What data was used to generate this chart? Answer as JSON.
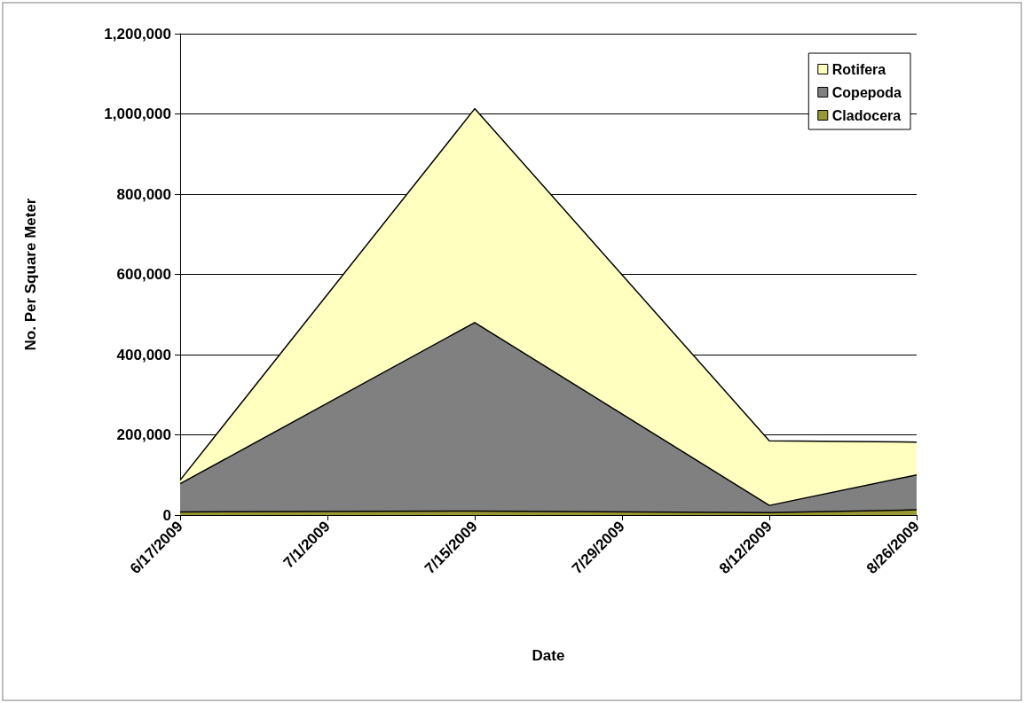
{
  "chart_data": {
    "type": "area",
    "stacked": true,
    "xlabel": "Date",
    "ylabel": "No. Per Square Meter",
    "x": [
      "2009-06-17",
      "2009-07-15",
      "2009-08-12",
      "2009-08-26"
    ],
    "series": [
      {
        "name": "Cladocera",
        "color": "#999933",
        "values": [
          8000,
          10000,
          6000,
          13000
        ]
      },
      {
        "name": "Copepoda",
        "color": "#808080",
        "values": [
          70000,
          470000,
          18000,
          87000
        ]
      },
      {
        "name": "Rotifera",
        "color": "#ffffc0",
        "values": [
          9000,
          533000,
          161000,
          82000
        ]
      }
    ],
    "xlim": [
      "2009-06-17",
      "2009-08-26"
    ],
    "xticks": [
      {
        "value": "2009-06-17",
        "label": "6/17/2009"
      },
      {
        "value": "2009-07-01",
        "label": "7/1/2009"
      },
      {
        "value": "2009-07-15",
        "label": "7/15/2009"
      },
      {
        "value": "2009-07-29",
        "label": "7/29/2009"
      },
      {
        "value": "2009-08-12",
        "label": "8/12/2009"
      },
      {
        "value": "2009-08-26",
        "label": "8/26/2009"
      }
    ],
    "ylim": [
      0,
      1200000
    ],
    "yticks": [
      {
        "value": 0,
        "label": "0"
      },
      {
        "value": 200000,
        "label": "200,000"
      },
      {
        "value": 400000,
        "label": "400,000"
      },
      {
        "value": 600000,
        "label": "600,000"
      },
      {
        "value": 800000,
        "label": "800,000"
      },
      {
        "value": 1000000,
        "label": "1,000,000"
      },
      {
        "value": 1200000,
        "label": "1,200,000"
      }
    ],
    "grid": "y",
    "legend": "top right"
  }
}
